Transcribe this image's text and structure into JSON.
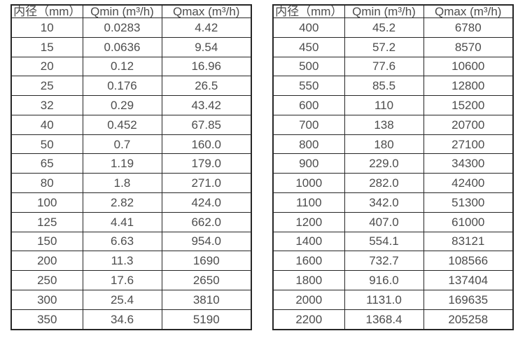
{
  "page": {
    "background": "#ffffff",
    "text_color": "#4d4d4d",
    "border_color": "#262626"
  },
  "chart_data": [
    {
      "type": "table",
      "title": "",
      "columns": [
        "内径（mm）",
        "Qmin (m³/h)",
        "Qmax (m³/h)"
      ],
      "rows": [
        [
          "10",
          "0.0283",
          "4.42"
        ],
        [
          "15",
          "0.0636",
          "9.54"
        ],
        [
          "20",
          "0.12",
          "16.96"
        ],
        [
          "25",
          "0.176",
          "26.5"
        ],
        [
          "32",
          "0.29",
          "43.42"
        ],
        [
          "40",
          "0.452",
          "67.85"
        ],
        [
          "50",
          "0.7",
          "160.0"
        ],
        [
          "65",
          "1.19",
          "179.0"
        ],
        [
          "80",
          "1.8",
          "271.0"
        ],
        [
          "100",
          "2.82",
          "424.0"
        ],
        [
          "125",
          "4.41",
          "662.0"
        ],
        [
          "150",
          "6.63",
          "954.0"
        ],
        [
          "200",
          "11.3",
          "1690"
        ],
        [
          "250",
          "17.6",
          "2650"
        ],
        [
          "300",
          "25.4",
          "3810"
        ],
        [
          "350",
          "34.6",
          "5190"
        ]
      ]
    },
    {
      "type": "table",
      "title": "",
      "columns": [
        "内径（mm）",
        "Qmin (m³/h)",
        "Qmax (m³/h)"
      ],
      "rows": [
        [
          "400",
          "45.2",
          "6780"
        ],
        [
          "450",
          "57.2",
          "8570"
        ],
        [
          "500",
          "77.6",
          "10600"
        ],
        [
          "550",
          "85.5",
          "12800"
        ],
        [
          "600",
          "110",
          "15200"
        ],
        [
          "700",
          "138",
          "20700"
        ],
        [
          "800",
          "180",
          "27100"
        ],
        [
          "900",
          "229.0",
          "34300"
        ],
        [
          "1000",
          "282.0",
          "42400"
        ],
        [
          "1100",
          "342.0",
          "51300"
        ],
        [
          "1200",
          "407.0",
          "61000"
        ],
        [
          "1400",
          "554.1",
          "83121"
        ],
        [
          "1600",
          "732.7",
          "108566"
        ],
        [
          "1800",
          "916.0",
          "137404"
        ],
        [
          "2000",
          "1131.0",
          "169635"
        ],
        [
          "2200",
          "1368.4",
          "205258"
        ]
      ]
    }
  ]
}
